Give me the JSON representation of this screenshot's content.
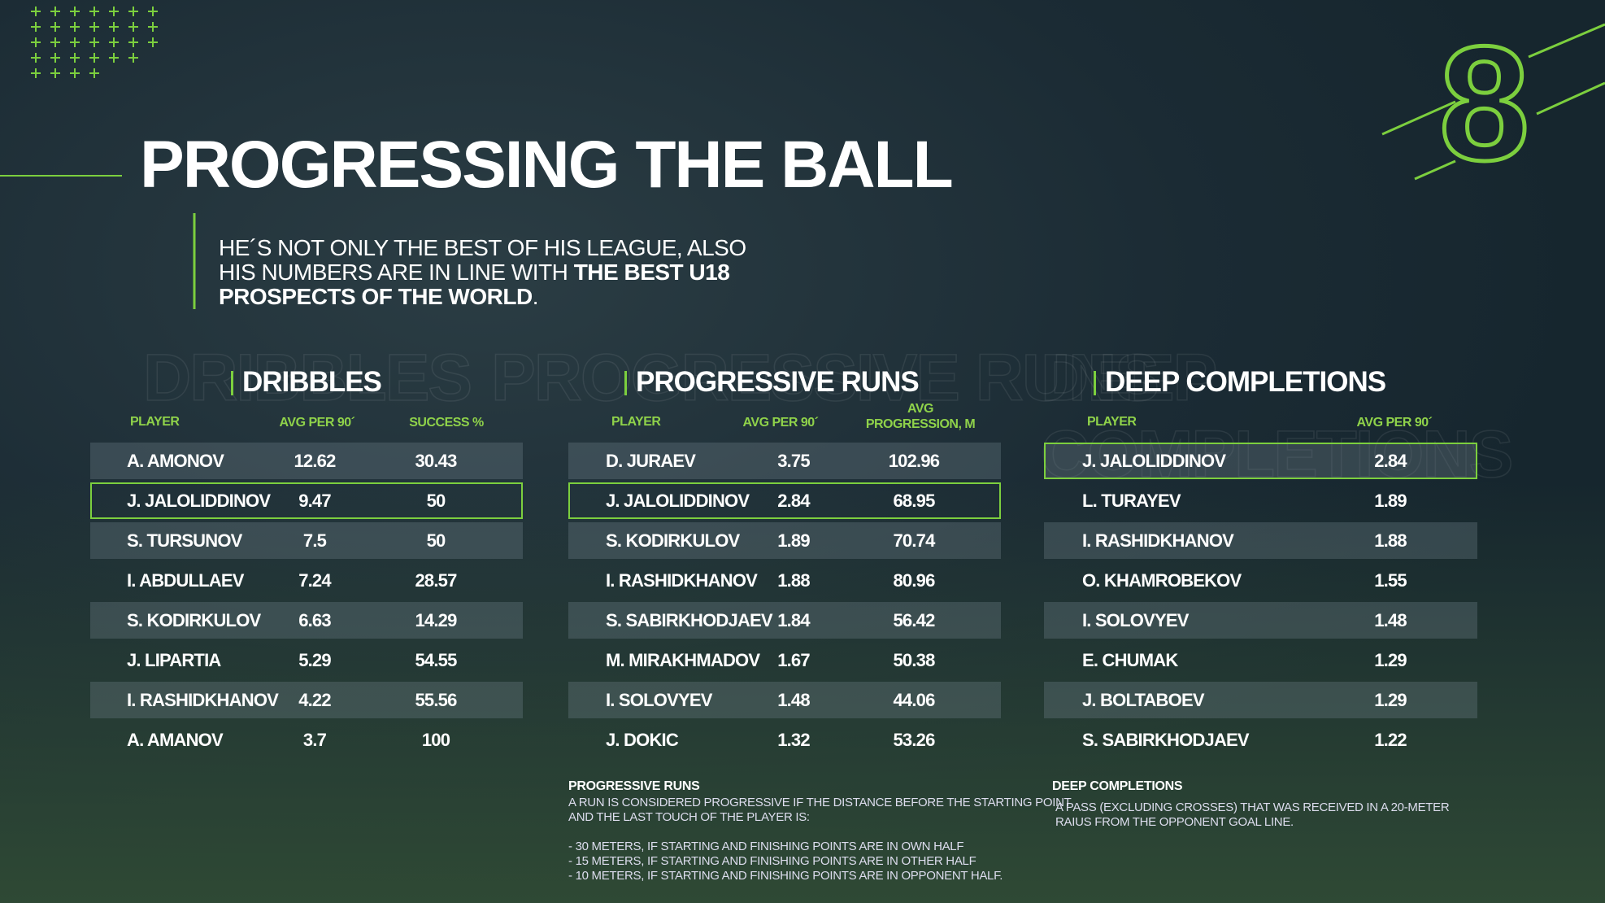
{
  "header": {
    "page_number": "8",
    "title": "PROGRESSING THE BALL",
    "subtitle": {
      "line1": "HE´S NOT ONLY THE BEST OF HIS LEAGUE, ALSO",
      "line2": "HIS NUMBERS ARE IN LINE WITH",
      "line2_bold": "THE BEST U18",
      "line3_bold": "PROSPECTS OF THE WORLD",
      "line3_end": "."
    }
  },
  "tables": [
    {
      "title": "DRIBBLES",
      "columns": [
        "PLAYER",
        "AVG PER 90´",
        "SUCCESS %"
      ],
      "rows": [
        [
          "A. AMONOV",
          "12.62",
          "30.43"
        ],
        [
          "J. JALOLIDDINOV",
          "9.47",
          "50"
        ],
        [
          "S. TURSUNOV",
          "7.5",
          "50"
        ],
        [
          "I. ABDULLAEV",
          "7.24",
          "28.57"
        ],
        [
          "S. KODIRKULOV",
          "6.63",
          "14.29"
        ],
        [
          "J. LIPARTIA",
          "5.29",
          "54.55"
        ],
        [
          "I. RASHIDKHANOV",
          "4.22",
          "55.56"
        ],
        [
          "A. AMANOV",
          "3.7",
          "100"
        ]
      ]
    },
    {
      "title": "PROGRESSIVE RUNS",
      "columns": [
        "PLAYER",
        "AVG PER 90´",
        "AVG PROGRESSION, M"
      ],
      "rows": [
        [
          "D. JURAEV",
          "3.75",
          "102.96"
        ],
        [
          "J. JALOLIDDINOV",
          "2.84",
          "68.95"
        ],
        [
          "S. KODIRKULOV",
          "1.89",
          "70.74"
        ],
        [
          "I. RASHIDKHANOV",
          "1.88",
          "80.96"
        ],
        [
          "S. SABIRKHODJAEV",
          "1.84",
          "56.42"
        ],
        [
          "M. MIRAKHMADOV",
          "1.67",
          "50.38"
        ],
        [
          "I. SOLOVYEV",
          "1.48",
          "44.06"
        ],
        [
          "J. DOKIC",
          "1.32",
          "53.26"
        ]
      ]
    },
    {
      "title": "DEEP COMPLETIONS",
      "columns": [
        "PLAYER",
        "AVG PER 90´"
      ],
      "rows": [
        [
          "J. JALOLIDDINOV",
          "2.84"
        ],
        [
          "L. TURAYEV",
          "1.89"
        ],
        [
          "I. RASHIDKHANOV",
          "1.88"
        ],
        [
          "O. KHAMROBEKOV",
          "1.55"
        ],
        [
          "I. SOLOVYEV",
          "1.48"
        ],
        [
          "E. CHUMAK",
          "1.29"
        ],
        [
          "J. BOLTABOEV",
          "1.29"
        ],
        [
          "S. SABIRKHODJAEV",
          "1.22"
        ]
      ]
    }
  ],
  "notes": [
    {
      "title": "PROGRESSIVE RUNS",
      "lines": [
        "A RUN IS CONSIDERED PROGRESSIVE IF THE DISTANCE BEFORE THE STARTING POINT",
        "AND THE LAST TOUCH OF THE PLAYER IS:",
        "- 30 METERS, IF STARTING AND FINISHING POINTS ARE IN OWN HALF",
        "- 15 METERS, IF STARTING AND FINISHING POINTS ARE IN OTHER HALF",
        "- 10 METERS, IF STARTING AND FINISHING POINTS ARE IN OPPONENT HALF."
      ]
    },
    {
      "title": "DEEP COMPLETIONS",
      "lines": [
        "A PASS (EXCLUDING CROSSES) THAT WAS RECEIVED IN A 20-METER",
        "RAIUS FROM THE OPPONENT GOAL LINE."
      ]
    }
  ]
}
